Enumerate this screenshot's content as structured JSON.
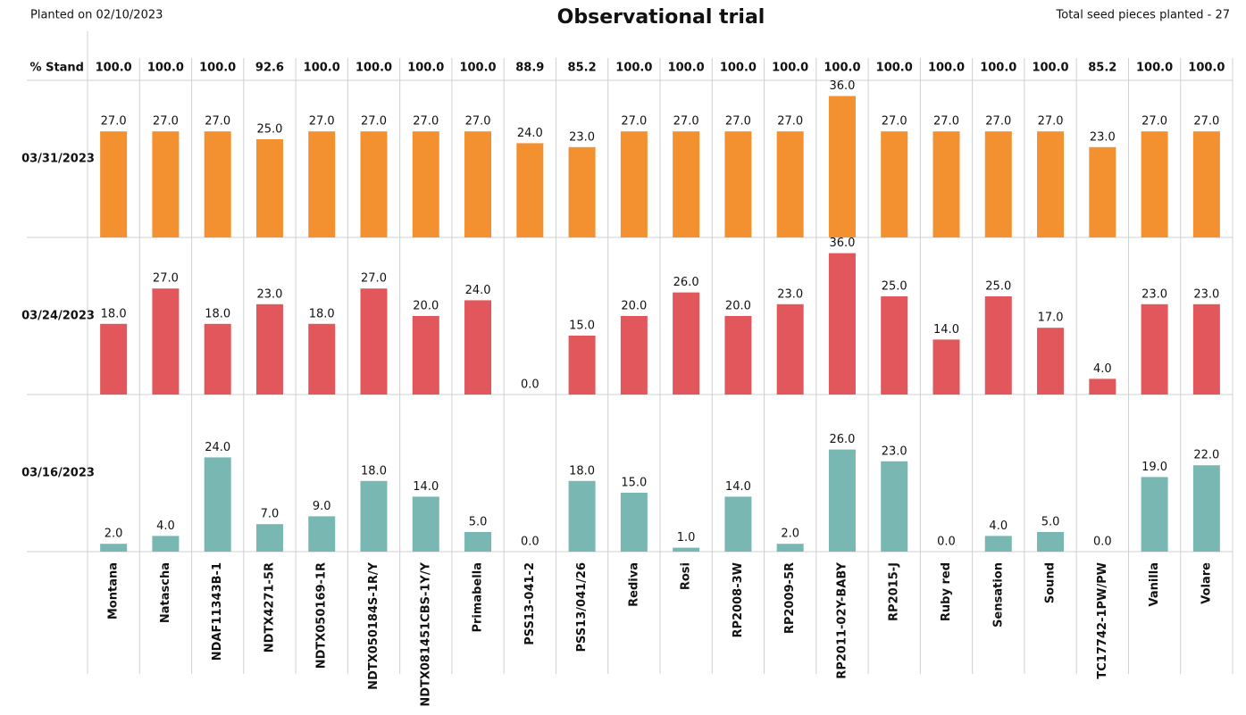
{
  "chart_data": {
    "type": "bar",
    "title": "Observational trial",
    "subtitle_left": "Planted on 02/10/2023",
    "subtitle_right": "Total seed pieces planted - 27",
    "categories": [
      "Montana",
      "Natascha",
      "NDAF11343B-1",
      "NDTX4271-5R",
      "NDTX050169-1R",
      "NDTX050184S-1R/Y",
      "NDTX081451CBS-1Y/Y",
      "Primabella",
      "PSS13-041-2",
      "PSS13/041/26",
      "Rediva",
      "Rosi",
      "RP2008-3W",
      "RP2009-5R",
      "RP2011-02Y-BABY",
      "RP2015-J",
      "Ruby red",
      "Sensation",
      "Sound",
      "TC17742-1PW/PW",
      "Vanilla",
      "Volare"
    ],
    "stand": {
      "label": "% Stand",
      "values": [
        100,
        100,
        100,
        92.6,
        100,
        100,
        100,
        100,
        88.9,
        85.2,
        100,
        100,
        100,
        100,
        100,
        100,
        100,
        100,
        100,
        85.2,
        100,
        100
      ],
      "value_labels": [
        "100.0",
        "100.0",
        "100.0",
        "92.6",
        "100.0",
        "100.0",
        "100.0",
        "100.0",
        "88.9",
        "85.2",
        "100.0",
        "100.0",
        "100.0",
        "100.0",
        "100.0",
        "100.0",
        "100.0",
        "100.0",
        "100.0",
        "85.2",
        "100.0",
        "100.0"
      ]
    },
    "ylim": [
      0,
      40
    ],
    "series": [
      {
        "name": "03/31/2023",
        "color": "#f39130",
        "values": [
          27,
          27,
          27,
          25,
          27,
          27,
          27,
          27,
          24,
          23,
          27,
          27,
          27,
          27,
          36,
          27,
          27,
          27,
          27,
          23,
          27,
          27
        ],
        "value_labels": [
          "27.0",
          "27.0",
          "27.0",
          "25.0",
          "27.0",
          "27.0",
          "27.0",
          "27.0",
          "24.0",
          "23.0",
          "27.0",
          "27.0",
          "27.0",
          "27.0",
          "36.0",
          "27.0",
          "27.0",
          "27.0",
          "27.0",
          "23.0",
          "27.0",
          "27.0"
        ]
      },
      {
        "name": "03/24/2023",
        "color": "#e2575c",
        "values": [
          18,
          27,
          18,
          23,
          18,
          27,
          20,
          24,
          0,
          15,
          20,
          26,
          20,
          23,
          36,
          25,
          14,
          25,
          17,
          4,
          23,
          23
        ],
        "value_labels": [
          "18.0",
          "27.0",
          "18.0",
          "23.0",
          "18.0",
          "27.0",
          "20.0",
          "24.0",
          "0.0",
          "15.0",
          "20.0",
          "26.0",
          "20.0",
          "23.0",
          "36.0",
          "25.0",
          "14.0",
          "25.0",
          "17.0",
          "4.0",
          "23.0",
          "23.0"
        ]
      },
      {
        "name": "03/16/2023",
        "color": "#79b8b2",
        "values": [
          2,
          4,
          24,
          7,
          9,
          18,
          14,
          5,
          0,
          18,
          15,
          1,
          14,
          2,
          26,
          23,
          0,
          4,
          5,
          0,
          19,
          22
        ],
        "value_labels": [
          "2.0",
          "4.0",
          "24.0",
          "7.0",
          "9.0",
          "18.0",
          "14.0",
          "5.0",
          "0.0",
          "18.0",
          "15.0",
          "1.0",
          "14.0",
          "2.0",
          "26.0",
          "23.0",
          "0.0",
          "4.0",
          "5.0",
          "0.0",
          "19.0",
          "22.0"
        ]
      }
    ]
  }
}
